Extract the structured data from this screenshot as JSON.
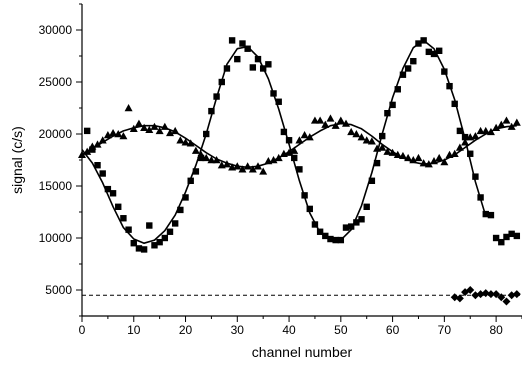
{
  "chart_data": {
    "type": "scatter",
    "title": "",
    "xlabel": "channel number",
    "ylabel": "signal (c/s)",
    "xlim": [
      0,
      85
    ],
    "ylim": [
      2500,
      32500
    ],
    "x_ticks": [
      0,
      10,
      20,
      30,
      40,
      50,
      60,
      70,
      80
    ],
    "y_ticks": [
      5000,
      10000,
      15000,
      20000,
      25000,
      30000
    ],
    "grid": false,
    "legend": "none",
    "colors": {
      "marker": "#000000",
      "line": "#000000"
    },
    "reference_line": {
      "y": 4500,
      "style": "dashed"
    },
    "series": [
      {
        "marker": "square",
        "points": [
          [
            1,
            20300
          ],
          [
            2,
            18500
          ],
          [
            3,
            17000
          ],
          [
            4,
            16200
          ],
          [
            5,
            14700
          ],
          [
            6,
            14300
          ],
          [
            7,
            13000
          ],
          [
            8,
            11900
          ],
          [
            9,
            10800
          ],
          [
            10,
            9500
          ],
          [
            11,
            9000
          ],
          [
            12,
            8900
          ],
          [
            13,
            11200
          ],
          [
            14,
            9300
          ],
          [
            15,
            9600
          ],
          [
            16,
            10000
          ],
          [
            17,
            10600
          ],
          [
            18,
            11400
          ],
          [
            19,
            12700
          ],
          [
            20,
            13900
          ],
          [
            21,
            15500
          ],
          [
            22,
            16400
          ],
          [
            23,
            17700
          ],
          [
            24,
            20000
          ],
          [
            25,
            22200
          ],
          [
            26,
            23600
          ],
          [
            27,
            25000
          ],
          [
            28,
            26300
          ],
          [
            29,
            29000
          ],
          [
            30,
            27200
          ],
          [
            31,
            28700
          ],
          [
            32,
            28200
          ],
          [
            33,
            26400
          ],
          [
            34,
            27200
          ],
          [
            35,
            26300
          ],
          [
            36,
            26700
          ],
          [
            37,
            23900
          ],
          [
            38,
            23100
          ],
          [
            39,
            20200
          ],
          [
            40,
            19400
          ],
          [
            41,
            17700
          ],
          [
            42,
            16600
          ],
          [
            43,
            14100
          ],
          [
            44,
            12800
          ],
          [
            45,
            11300
          ],
          [
            46,
            10600
          ],
          [
            47,
            10200
          ],
          [
            48,
            9900
          ],
          [
            49,
            9800
          ],
          [
            50,
            9800
          ],
          [
            51,
            11000
          ],
          [
            52,
            11100
          ],
          [
            53,
            11500
          ],
          [
            54,
            11800
          ],
          [
            55,
            13000
          ],
          [
            56,
            15500
          ],
          [
            57,
            17200
          ],
          [
            58,
            19800
          ],
          [
            59,
            22000
          ],
          [
            60,
            22800
          ],
          [
            61,
            24300
          ],
          [
            62,
            25700
          ],
          [
            63,
            26300
          ],
          [
            64,
            27000
          ],
          [
            65,
            28700
          ],
          [
            66,
            29000
          ],
          [
            67,
            27900
          ],
          [
            68,
            27700
          ],
          [
            69,
            28000
          ],
          [
            70,
            26000
          ],
          [
            71,
            24600
          ],
          [
            72,
            22900
          ],
          [
            73,
            20300
          ],
          [
            74,
            19700
          ],
          [
            75,
            18100
          ],
          [
            76,
            15900
          ],
          [
            77,
            13900
          ],
          [
            78,
            12300
          ],
          [
            79,
            12200
          ],
          [
            80,
            10000
          ],
          [
            81,
            9600
          ],
          [
            82,
            10100
          ],
          [
            83,
            10400
          ],
          [
            84,
            10200
          ]
        ]
      },
      {
        "marker": "triangle",
        "points": [
          [
            0,
            18000
          ],
          [
            1,
            18300
          ],
          [
            2,
            18800
          ],
          [
            3,
            19000
          ],
          [
            4,
            19400
          ],
          [
            5,
            19900
          ],
          [
            6,
            20100
          ],
          [
            7,
            20000
          ],
          [
            8,
            19800
          ],
          [
            9,
            22500
          ],
          [
            10,
            20500
          ],
          [
            11,
            21000
          ],
          [
            12,
            20600
          ],
          [
            13,
            20400
          ],
          [
            14,
            20700
          ],
          [
            15,
            20300
          ],
          [
            16,
            20700
          ],
          [
            17,
            20100
          ],
          [
            18,
            20300
          ],
          [
            19,
            19400
          ],
          [
            20,
            19200
          ],
          [
            21,
            19100
          ],
          [
            22,
            18400
          ],
          [
            23,
            18000
          ],
          [
            24,
            17700
          ],
          [
            25,
            17500
          ],
          [
            26,
            17500
          ],
          [
            27,
            17000
          ],
          [
            28,
            17100
          ],
          [
            29,
            16800
          ],
          [
            30,
            16900
          ],
          [
            31,
            16600
          ],
          [
            32,
            16900
          ],
          [
            33,
            16600
          ],
          [
            34,
            16900
          ],
          [
            35,
            16400
          ],
          [
            36,
            17400
          ],
          [
            37,
            17500
          ],
          [
            38,
            17700
          ],
          [
            39,
            18100
          ],
          [
            40,
            18200
          ],
          [
            41,
            18400
          ],
          [
            42,
            19400
          ],
          [
            43,
            19900
          ],
          [
            44,
            19700
          ],
          [
            45,
            21300
          ],
          [
            46,
            21300
          ],
          [
            47,
            20900
          ],
          [
            48,
            21500
          ],
          [
            49,
            20800
          ],
          [
            50,
            21300
          ],
          [
            51,
            21000
          ],
          [
            52,
            20200
          ],
          [
            53,
            20000
          ],
          [
            54,
            19700
          ],
          [
            55,
            19400
          ],
          [
            56,
            19300
          ],
          [
            57,
            18600
          ],
          [
            58,
            18700
          ],
          [
            59,
            18300
          ],
          [
            60,
            18200
          ],
          [
            61,
            18000
          ],
          [
            62,
            17900
          ],
          [
            63,
            17700
          ],
          [
            64,
            17500
          ],
          [
            65,
            17700
          ],
          [
            66,
            17200
          ],
          [
            67,
            17100
          ],
          [
            68,
            17400
          ],
          [
            69,
            17700
          ],
          [
            70,
            17300
          ],
          [
            71,
            18000
          ],
          [
            72,
            18100
          ],
          [
            73,
            18700
          ],
          [
            74,
            19200
          ],
          [
            75,
            19700
          ],
          [
            76,
            19800
          ],
          [
            77,
            20300
          ],
          [
            78,
            20300
          ],
          [
            79,
            20200
          ],
          [
            80,
            20600
          ],
          [
            81,
            20900
          ],
          [
            82,
            21300
          ],
          [
            83,
            20700
          ],
          [
            84,
            21100
          ]
        ]
      },
      {
        "marker": "diamond",
        "points": [
          [
            72,
            4300
          ],
          [
            73,
            4200
          ],
          [
            74,
            4800
          ],
          [
            75,
            5000
          ],
          [
            76,
            4500
          ],
          [
            77,
            4600
          ],
          [
            78,
            4700
          ],
          [
            79,
            4600
          ],
          [
            80,
            4600
          ],
          [
            81,
            4300
          ],
          [
            82,
            3900
          ],
          [
            83,
            4500
          ],
          [
            84,
            4600
          ]
        ]
      }
    ],
    "fits": [
      {
        "of": "square",
        "x": [
          0,
          2,
          4,
          6,
          8,
          10,
          12,
          14,
          16,
          18,
          20,
          22,
          24,
          26,
          28,
          30,
          32,
          34,
          36,
          38,
          40,
          42,
          44,
          46,
          48,
          50,
          52,
          54,
          56,
          58,
          60,
          62,
          64,
          66,
          68,
          70,
          72,
          74,
          76,
          78
        ],
        "y": [
          18500,
          17200,
          15300,
          13000,
          11000,
          9900,
          9500,
          9800,
          10700,
          12200,
          14400,
          17000,
          20000,
          23500,
          26700,
          28200,
          28400,
          27400,
          25300,
          22400,
          19000,
          15500,
          12400,
          10500,
          9800,
          9800,
          10800,
          13100,
          16300,
          20000,
          23500,
          26300,
          28300,
          29000,
          28200,
          26200,
          23300,
          19500,
          15400,
          12100
        ]
      },
      {
        "of": "triangle",
        "x": [
          0,
          2,
          4,
          6,
          8,
          10,
          12,
          14,
          16,
          18,
          20,
          22,
          24,
          26,
          28,
          30,
          32,
          34,
          36,
          38,
          40,
          42,
          44,
          46,
          48,
          50,
          52,
          54,
          56,
          58,
          60,
          62,
          64,
          66,
          68,
          70,
          72,
          74,
          76,
          78,
          80,
          82,
          84
        ],
        "y": [
          18000,
          18600,
          19200,
          19800,
          20300,
          20600,
          20800,
          20800,
          20600,
          20200,
          19600,
          18900,
          18200,
          17600,
          17200,
          16900,
          16800,
          16900,
          17200,
          17700,
          18300,
          19000,
          19700,
          20300,
          20800,
          21000,
          20900,
          20500,
          19800,
          19000,
          18300,
          17700,
          17300,
          17100,
          17200,
          17500,
          18000,
          18700,
          19400,
          20000,
          20500,
          20700,
          20800
        ]
      }
    ]
  }
}
